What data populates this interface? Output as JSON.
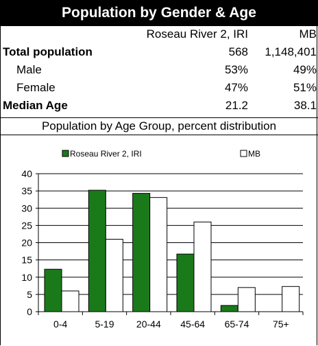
{
  "title": "Population by Gender & Age",
  "columns": [
    "Roseau River 2, IRI",
    "MB"
  ],
  "rows": [
    {
      "label": "Total population",
      "v1": "568",
      "v2": "1,148,401"
    },
    {
      "label": "Male",
      "v1": "53%",
      "v2": "49%"
    },
    {
      "label": "Female",
      "v1": "47%",
      "v2": "51%"
    },
    {
      "label": "Median Age",
      "v1": "21.2",
      "v2": "38.1"
    }
  ],
  "chart_data": {
    "type": "bar",
    "title": "Population by Age Group, percent distribution",
    "categories": [
      "0-4",
      "5-19",
      "20-44",
      "45-64",
      "65-74",
      "75+"
    ],
    "series": [
      {
        "name": "Roseau River 2, IRI",
        "values": [
          12.3,
          35.2,
          34.3,
          16.7,
          1.8,
          0
        ],
        "color": "#1a7a1a"
      },
      {
        "name": "MB",
        "values": [
          6.0,
          21.0,
          33.1,
          26.0,
          7.0,
          7.3
        ],
        "color": "#ffffff"
      }
    ],
    "ylim": [
      0,
      40
    ],
    "yticks": [
      0,
      5,
      10,
      15,
      20,
      25,
      30,
      35,
      40
    ],
    "grid": true,
    "legend": "top"
  }
}
